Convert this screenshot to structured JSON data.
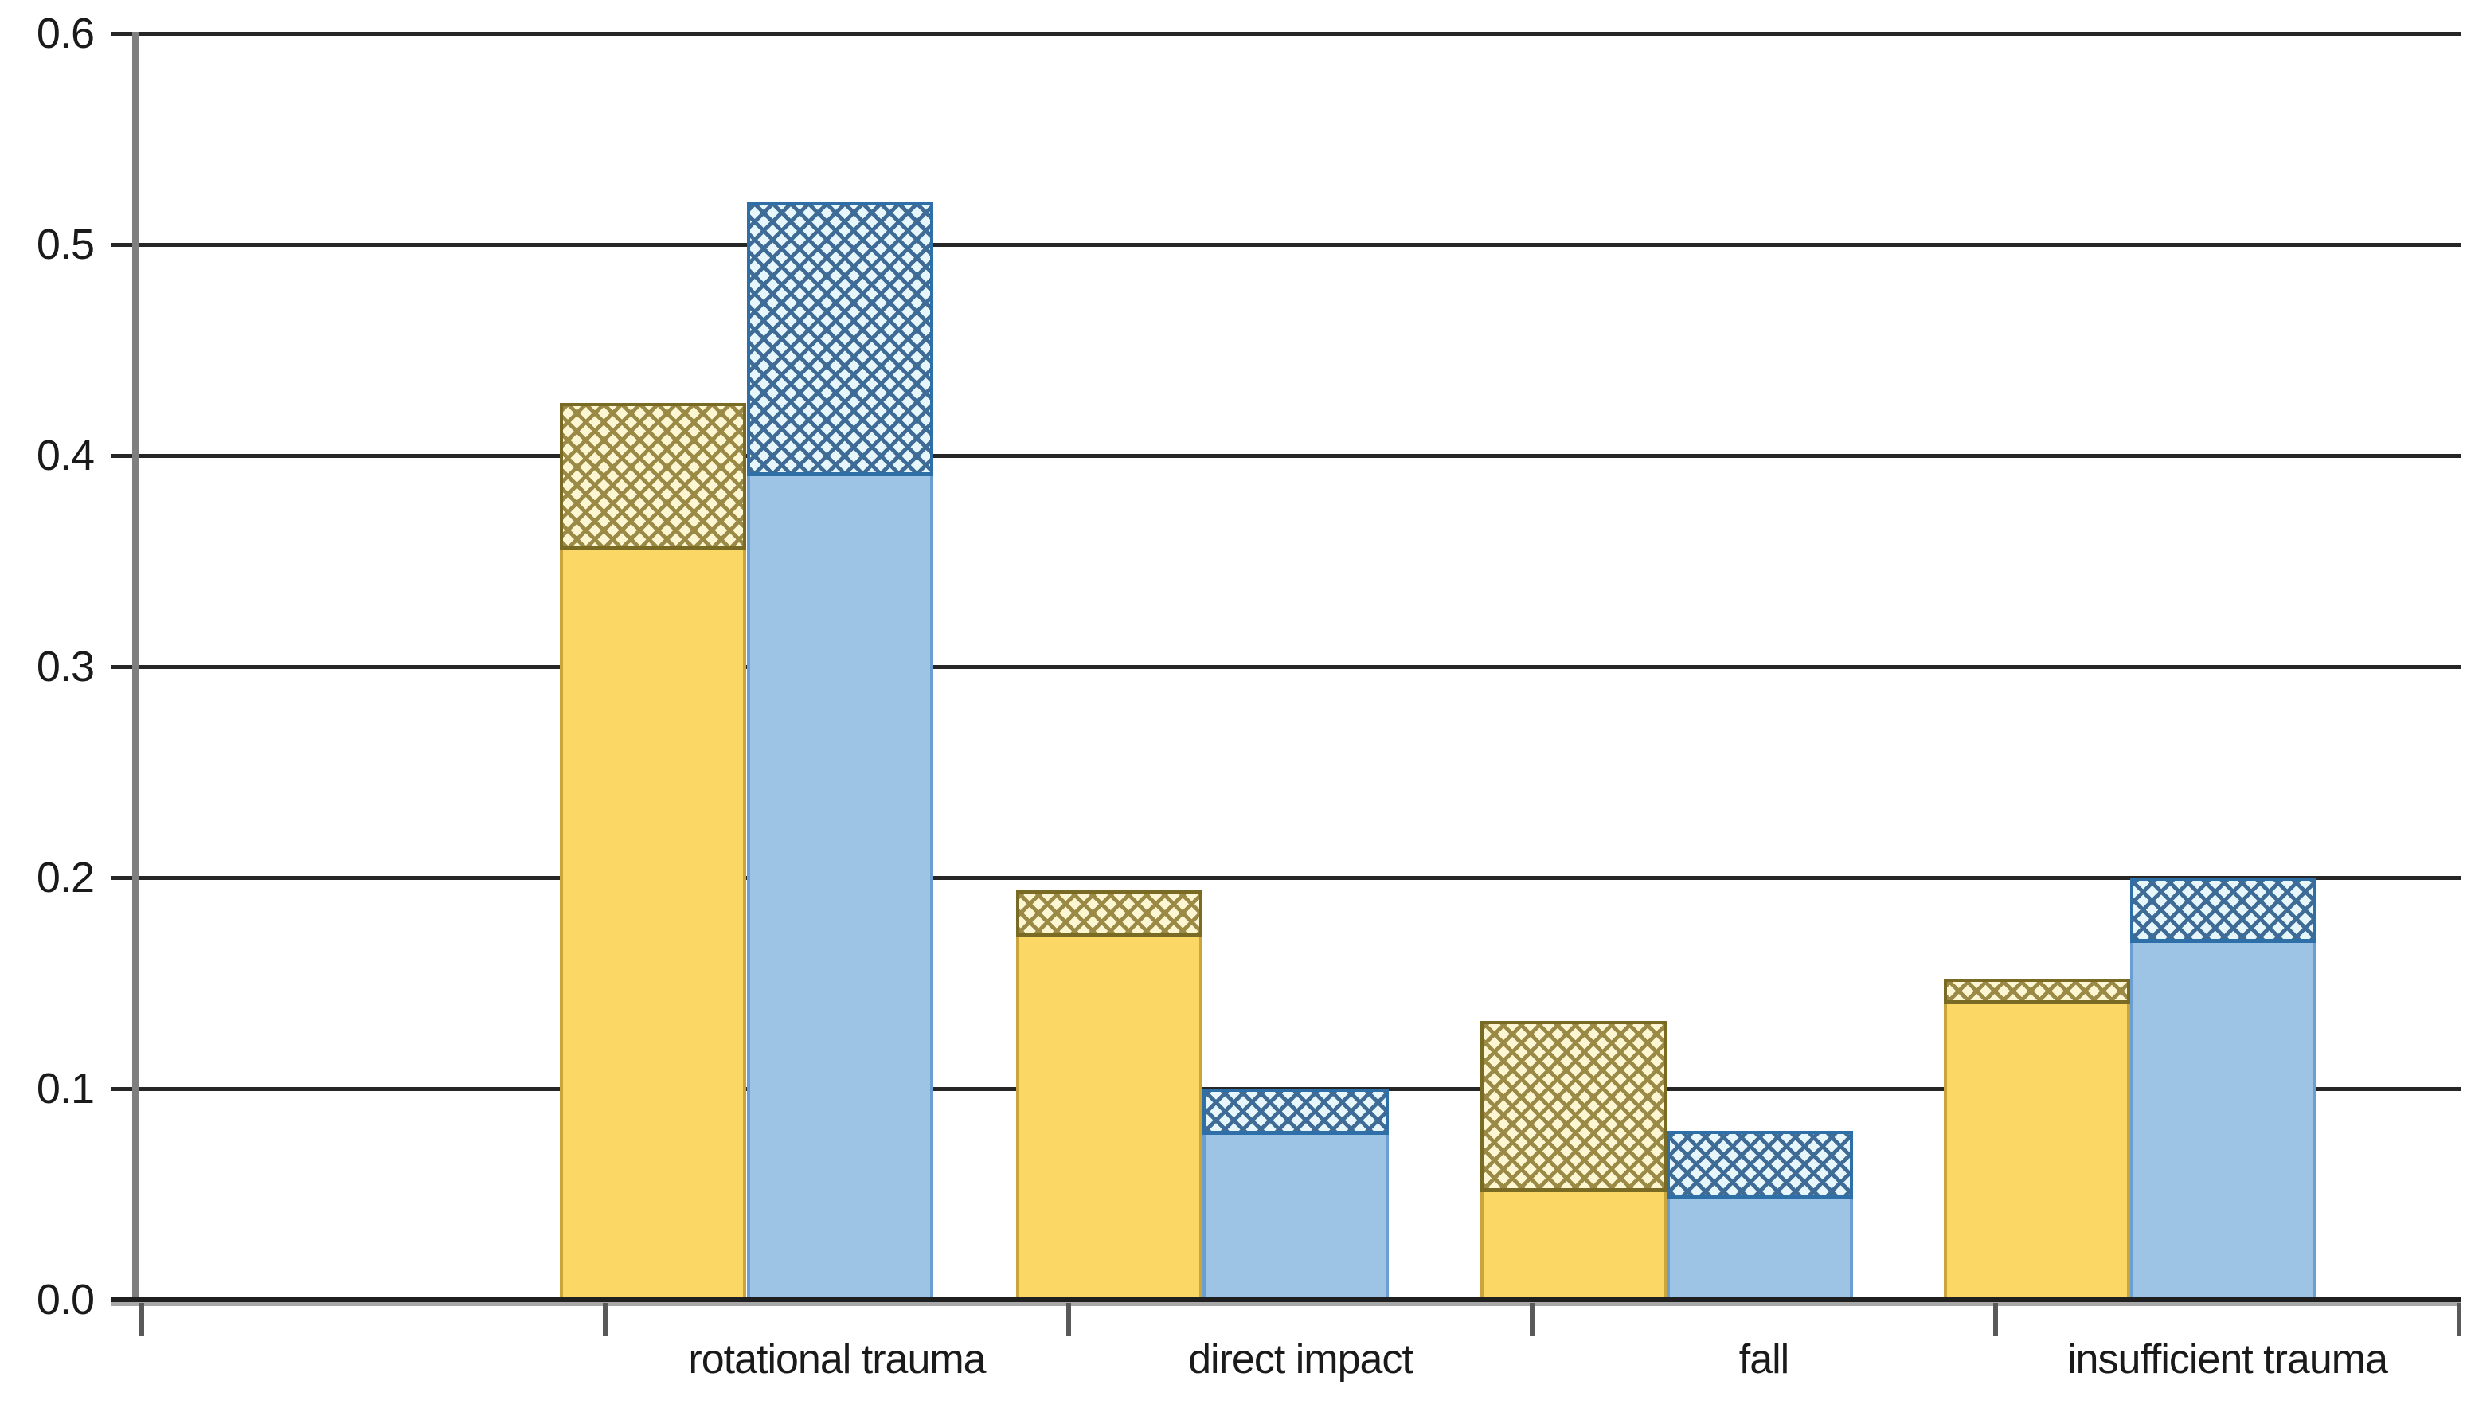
{
  "chart_data": {
    "type": "bar",
    "title": "",
    "xlabel": "",
    "ylabel": "",
    "categories": [
      "rotational trauma",
      "direct impact",
      "fall",
      "insufficient trauma"
    ],
    "series": [
      {
        "name": "yellow bars (solid base with crosshatched cap)",
        "solid_values": [
          0.355,
          0.172,
          0.051,
          0.14
        ],
        "total_values_including_hatched_cap": [
          0.425,
          0.194,
          0.132,
          0.152
        ],
        "hatched_cap_values": [
          0.07,
          0.022,
          0.081,
          0.012
        ]
      },
      {
        "name": "blue bars (solid base with crosshatched cap)",
        "solid_values": [
          0.39,
          0.078,
          0.048,
          0.169
        ],
        "total_values_including_hatched_cap": [
          0.52,
          0.1,
          0.08,
          0.2
        ],
        "hatched_cap_values": [
          0.13,
          0.022,
          0.032,
          0.031
        ]
      }
    ],
    "ylim": [
      0.0,
      0.6
    ],
    "yticks": [
      "0.0",
      "0.1",
      "0.2",
      "0.3",
      "0.4",
      "0.5",
      "0.6"
    ],
    "grid": "horizontal black gridlines at every 0.1",
    "legend": false
  },
  "colors": {
    "yellow_fill": "#FBD765",
    "yellow_solid_border": "#C9A53C",
    "yellow_hatch_bg": "#FCF7D2",
    "yellow_hatch_line": "#9A8A45",
    "yellow_hatch_border": "#7A6B24",
    "blue_fill": "#9DC3E5",
    "blue_solid_border": "#6B9FD2",
    "blue_hatch_bg": "#E6F6FB",
    "blue_hatch_line": "#3F6C96",
    "blue_hatch_border": "#2E6FA8",
    "gridline": "#262626",
    "axis_line": "#7F7F7F",
    "tick": "#595959",
    "text": "#1A1A1A"
  }
}
